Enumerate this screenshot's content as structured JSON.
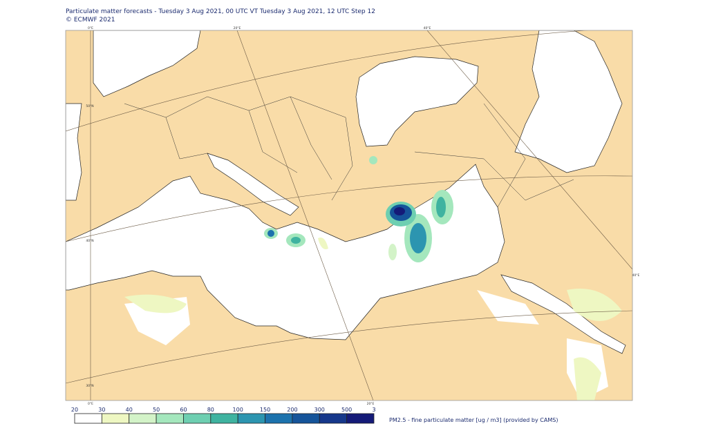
{
  "header": {
    "title": "Particulate matter forecasts - Tuesday 3 Aug 2021, 00 UTC VT Tuesday 3 Aug 2021, 12 UTC Step 12",
    "copyright": "© ECMWF 2021"
  },
  "graticule_labels": [
    "0°E",
    "20°E",
    "40°E",
    "50°N",
    "40°N",
    "30°N",
    "0°E",
    "20°E",
    "40°E"
  ],
  "legend": {
    "ticks": [
      20,
      30,
      40,
      50,
      60,
      80,
      100,
      150,
      200,
      300,
      500,
      3
    ],
    "colors": [
      "#ffffff",
      "#eef7c2",
      "#d3f3c8",
      "#a4e7bd",
      "#6ecfb1",
      "#3fb3a0",
      "#2c95b0",
      "#1c72ad",
      "#15549a",
      "#16388b",
      "#141a78",
      "#2b0b4b"
    ],
    "label": "PM2.5 - fine particulate matter [ug / m3] (provided by CAMS)"
  }
}
